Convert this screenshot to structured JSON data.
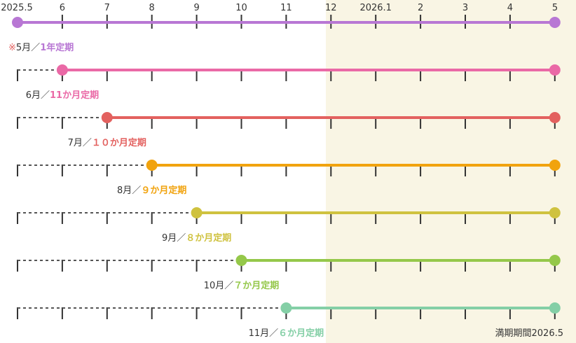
{
  "months": [
    "2025.5",
    "6",
    "7",
    "8",
    "9",
    "10",
    "11",
    "12",
    "2026.1",
    "2",
    "3",
    "4",
    "5"
  ],
  "plans": [
    {
      "note": "※",
      "start": "5月／",
      "plan": "1年定期",
      "start_index": 0,
      "color": "#b877d4"
    },
    {
      "note": "",
      "start": "6月／",
      "plan": "11か月定期",
      "start_index": 1,
      "color": "#ea69a6"
    },
    {
      "note": "",
      "start": "7月／",
      "plan": "１０か月定期",
      "start_index": 2,
      "color": "#e3615f"
    },
    {
      "note": "",
      "start": "8月／",
      "plan": "９か月定期",
      "start_index": 3,
      "color": "#f1a30e"
    },
    {
      "note": "",
      "start": "9月／",
      "plan": "８か月定期",
      "start_index": 4,
      "color": "#cfc23f"
    },
    {
      "note": "",
      "start": "10月／",
      "plan": "７か月定期",
      "start_index": 5,
      "color": "#95c84a"
    },
    {
      "note": "",
      "start": "11月／",
      "plan": "６か月定期",
      "start_index": 6,
      "color": "#84cfa6"
    }
  ],
  "expiry_label": "満期期間2026.5",
  "colors": {
    "period_2026_bg": "#f9f5e4",
    "tick": "#333333",
    "dotted": "#555555"
  }
}
